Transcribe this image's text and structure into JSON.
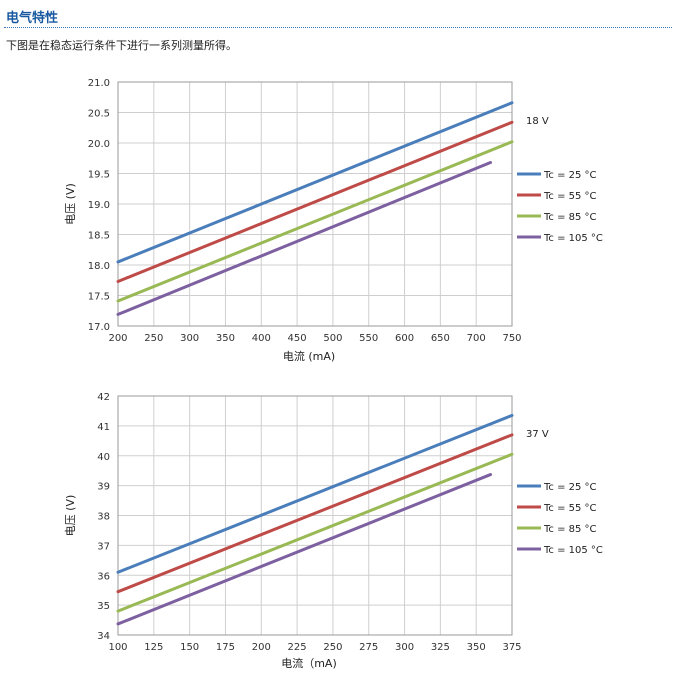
{
  "header": {
    "title": "电气特性",
    "intro": "下图是在稳态运行条件下进行一系列测量所得。"
  },
  "chart_data": [
    {
      "type": "line",
      "xlabel": "电流 (mA)",
      "ylabel": "电压 (V)",
      "xlim": [
        200,
        750
      ],
      "ylim": [
        17.0,
        21.0
      ],
      "xticks": [
        "200",
        "250",
        "300",
        "350",
        "400",
        "450",
        "500",
        "550",
        "600",
        "650",
        "700",
        "750"
      ],
      "yticks": [
        "17.0",
        "17.5",
        "18.0",
        "18.5",
        "19.0",
        "19.5",
        "20.0",
        "20.5",
        "21.0"
      ],
      "annotation": "18 V",
      "grid": true,
      "legend_position": "right",
      "series": [
        {
          "name": "Tc = 25 °C",
          "color": "#4a7ebb",
          "x": [
            200,
            750
          ],
          "y": [
            18.05,
            20.66
          ]
        },
        {
          "name": "Tc = 55 °C",
          "color": "#be4b48",
          "x": [
            200,
            750
          ],
          "y": [
            17.73,
            20.34
          ]
        },
        {
          "name": "Tc = 85 °C",
          "color": "#98b954",
          "x": [
            200,
            750
          ],
          "y": [
            17.41,
            20.02
          ]
        },
        {
          "name": "Tc = 105 °C",
          "color": "#7d60a0",
          "x": [
            200,
            720
          ],
          "y": [
            17.19,
            19.68
          ]
        }
      ]
    },
    {
      "type": "line",
      "xlabel": "电流（mA)",
      "ylabel": "电压 (V)",
      "xlim": [
        100,
        375
      ],
      "ylim": [
        34,
        42
      ],
      "xticks": [
        "100",
        "125",
        "150",
        "175",
        "200",
        "225",
        "250",
        "275",
        "300",
        "325",
        "350",
        "375"
      ],
      "yticks": [
        "34",
        "35",
        "36",
        "37",
        "38",
        "39",
        "40",
        "41",
        "42"
      ],
      "annotation": "37 V",
      "grid": true,
      "legend_position": "right",
      "series": [
        {
          "name": "Tc = 25 °C",
          "color": "#4a7ebb",
          "x": [
            100,
            375
          ],
          "y": [
            36.1,
            41.35
          ]
        },
        {
          "name": "Tc = 55 °C",
          "color": "#be4b48",
          "x": [
            100,
            375
          ],
          "y": [
            35.45,
            40.7
          ]
        },
        {
          "name": "Tc = 85 °C",
          "color": "#98b954",
          "x": [
            100,
            375
          ],
          "y": [
            34.8,
            40.05
          ]
        },
        {
          "name": "Tc = 105 °C",
          "color": "#7d60a0",
          "x": [
            100,
            360
          ],
          "y": [
            34.37,
            39.37
          ]
        }
      ]
    }
  ]
}
